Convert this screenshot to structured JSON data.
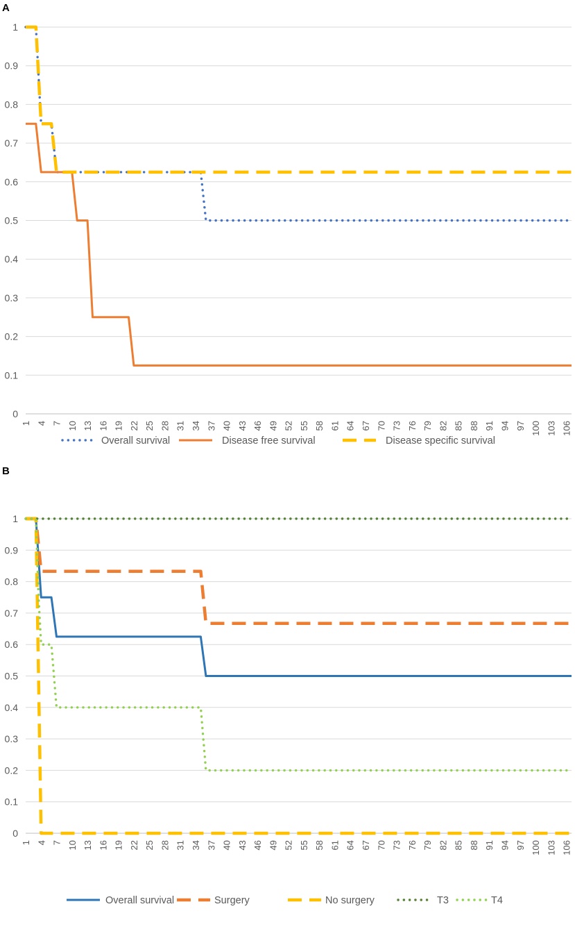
{
  "chart_data": [
    {
      "panel": "A",
      "type": "line",
      "x_tick_labels": [
        "1",
        "4",
        "7",
        "10",
        "13",
        "16",
        "19",
        "22",
        "25",
        "28",
        "31",
        "34",
        "37",
        "40",
        "43",
        "46",
        "49",
        "52",
        "55",
        "58",
        "61",
        "64",
        "67",
        "70",
        "73",
        "76",
        "79",
        "82",
        "85",
        "88",
        "91",
        "94",
        "97",
        "100",
        "103",
        "106"
      ],
      "xlim": [
        1,
        107
      ],
      "ylim": [
        0,
        1
      ],
      "y_ticks": [
        "0",
        "0.1",
        "0.2",
        "0.3",
        "0.4",
        "0.5",
        "0.6",
        "0.7",
        "0.8",
        "0.9",
        "1"
      ],
      "grid": "horizontal",
      "legend": "bottom",
      "series": [
        {
          "name": "Overall survival",
          "style": "dotted",
          "color": "#4472C4",
          "points": [
            [
              1,
              1
            ],
            [
              3,
              1
            ],
            [
              4,
              0.75
            ],
            [
              6,
              0.75
            ],
            [
              7,
              0.625
            ],
            [
              35,
              0.625
            ],
            [
              36,
              0.5
            ],
            [
              107,
              0.5
            ]
          ]
        },
        {
          "name": "Disease free survival",
          "style": "solid",
          "color": "#ED7D31",
          "points": [
            [
              1,
              0.75
            ],
            [
              3,
              0.75
            ],
            [
              4,
              0.625
            ],
            [
              10,
              0.625
            ],
            [
              11,
              0.5
            ],
            [
              13,
              0.5
            ],
            [
              14,
              0.25
            ],
            [
              21,
              0.25
            ],
            [
              22,
              0.125
            ],
            [
              107,
              0.125
            ]
          ]
        },
        {
          "name": "Disease specific survival",
          "style": "dashed",
          "color": "#FFC000",
          "points": [
            [
              1,
              1
            ],
            [
              3,
              1
            ],
            [
              4,
              0.75
            ],
            [
              6,
              0.75
            ],
            [
              7,
              0.625
            ],
            [
              107,
              0.625
            ]
          ]
        }
      ]
    },
    {
      "panel": "B",
      "type": "line",
      "x_tick_labels": [
        "1",
        "4",
        "7",
        "10",
        "13",
        "16",
        "19",
        "22",
        "25",
        "28",
        "31",
        "34",
        "37",
        "40",
        "43",
        "46",
        "49",
        "52",
        "55",
        "58",
        "61",
        "64",
        "67",
        "70",
        "73",
        "76",
        "79",
        "82",
        "85",
        "88",
        "91",
        "94",
        "97",
        "100",
        "103",
        "106"
      ],
      "xlim": [
        1,
        107
      ],
      "ylim": [
        0,
        1
      ],
      "y_ticks": [
        "0",
        "0.1",
        "0.2",
        "0.3",
        "0.4",
        "0.5",
        "0.6",
        "0.7",
        "0.8",
        "0.9",
        "1"
      ],
      "grid": "horizontal",
      "legend": "bottom",
      "series": [
        {
          "name": "Overall survival",
          "style": "solid",
          "color": "#2E75B6",
          "points": [
            [
              1,
              1
            ],
            [
              3,
              1
            ],
            [
              4,
              0.75
            ],
            [
              6,
              0.75
            ],
            [
              7,
              0.625
            ],
            [
              35,
              0.625
            ],
            [
              36,
              0.5
            ],
            [
              107,
              0.5
            ]
          ]
        },
        {
          "name": "Surgery",
          "style": "dashed",
          "color": "#ED7D31",
          "points": [
            [
              1,
              1
            ],
            [
              3,
              1
            ],
            [
              4,
              0.833
            ],
            [
              35,
              0.833
            ],
            [
              36,
              0.667
            ],
            [
              107,
              0.667
            ]
          ]
        },
        {
          "name": "No surgery",
          "style": "dashed",
          "color": "#FFC000",
          "points": [
            [
              1,
              1
            ],
            [
              3,
              1
            ],
            [
              4,
              0
            ],
            [
              107,
              0
            ]
          ]
        },
        {
          "name": "T3",
          "style": "dotted",
          "color": "#548235",
          "points": [
            [
              1,
              1
            ],
            [
              107,
              1
            ]
          ]
        },
        {
          "name": "T4",
          "style": "dotted",
          "color": "#92D050",
          "points": [
            [
              1,
              1
            ],
            [
              3,
              1
            ],
            [
              3.5,
              0.75
            ],
            [
              4,
              0.6
            ],
            [
              6,
              0.6
            ],
            [
              7,
              0.4
            ],
            [
              35,
              0.4
            ],
            [
              36,
              0.2
            ],
            [
              107,
              0.2
            ]
          ]
        }
      ]
    }
  ]
}
